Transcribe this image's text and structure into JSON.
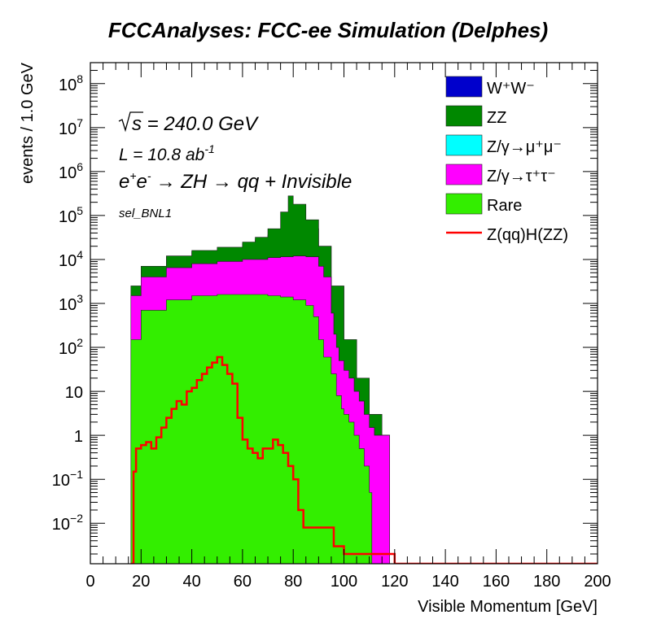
{
  "chart_data": {
    "type": "area",
    "title": "FCCAnalyses: FCC-ee Simulation (Delphes)",
    "xlabel": "Visible Momentum [GeV]",
    "ylabel": "events / 1.0 GeV",
    "xlim": [
      0,
      200
    ],
    "ylim": [
      0.0012,
      300000000
    ],
    "yscale": "log",
    "grid": false,
    "legend_position": "top-right",
    "x_ticks": [
      0,
      20,
      40,
      60,
      80,
      100,
      120,
      140,
      160,
      180,
      200
    ],
    "y_ticks": [
      {
        "value": 0.01,
        "base": "10",
        "exp": "−2"
      },
      {
        "value": 0.1,
        "base": "10",
        "exp": "−1"
      },
      {
        "value": 1,
        "base": "1",
        "exp": ""
      },
      {
        "value": 10,
        "base": "10",
        "exp": ""
      },
      {
        "value": 100,
        "base": "10",
        "exp": "2"
      },
      {
        "value": 1000,
        "base": "10",
        "exp": "3"
      },
      {
        "value": 10000,
        "base": "10",
        "exp": "4"
      },
      {
        "value": 100000,
        "base": "10",
        "exp": "5"
      },
      {
        "value": 1000000,
        "base": "10",
        "exp": "6"
      },
      {
        "value": 10000000,
        "base": "10",
        "exp": "7"
      },
      {
        "value": 100000000,
        "base": "10",
        "exp": "8"
      }
    ],
    "annotations": {
      "sqrt_s": "s = 240.0 GeV",
      "lumi": "L = 10.8 ab",
      "lumi_exp": "-1",
      "process_ee": "e",
      "process_rest": "→ ZH → qq + Invisible",
      "selection": "sel_BNL1"
    },
    "stacked_series_cumulative": [
      {
        "name": "W+W-",
        "legend": "W⁺W⁻",
        "color": "#0000cc",
        "x": [
          16,
          20,
          30,
          40,
          50,
          60,
          65,
          70,
          75,
          80,
          85,
          90,
          95,
          100,
          105,
          110,
          115,
          117
        ],
        "values": [
          2500,
          7000,
          12000,
          15000,
          18000,
          23000,
          28000,
          36000,
          48000,
          70000,
          50000,
          20000,
          2500,
          150,
          20,
          3,
          1,
          1
        ]
      },
      {
        "name": "ZZ",
        "legend": "ZZ",
        "color": "#008800",
        "x": [
          16,
          20,
          30,
          40,
          50,
          60,
          65,
          70,
          75,
          78,
          80,
          85,
          90,
          95,
          100,
          105,
          110,
          115,
          117
        ],
        "values": [
          2500,
          7000,
          12000,
          16000,
          19000,
          25000,
          32000,
          50000,
          120000,
          280000,
          180000,
          80000,
          20000,
          2500,
          150,
          20,
          3,
          1,
          1
        ]
      },
      {
        "name": "Z/gamma->mumu",
        "legend": "Z/γ→μ⁺μ⁻",
        "color": "#00ffff",
        "x": [
          16,
          20,
          30,
          40,
          50,
          60,
          70,
          75,
          80,
          85,
          90,
          92,
          95,
          96,
          97,
          98,
          100,
          102,
          104,
          106,
          108,
          110,
          112,
          115,
          117
        ],
        "values": [
          1500,
          4000,
          6500,
          8000,
          9000,
          10000,
          11000,
          11500,
          12000,
          11500,
          7000,
          4000,
          600,
          200,
          100,
          50,
          30,
          20,
          10,
          6,
          3,
          1.5,
          1,
          1,
          1
        ]
      },
      {
        "name": "Z/gamma->tautau",
        "legend": "Z/γ→τ⁺τ⁻",
        "color": "#ff00ff",
        "x": [
          16,
          20,
          30,
          40,
          50,
          60,
          70,
          75,
          80,
          85,
          90,
          92,
          95,
          96,
          97,
          98,
          100,
          102,
          104,
          106,
          108,
          110,
          112,
          115,
          117
        ],
        "values": [
          1500,
          4000,
          6500,
          8000,
          9000,
          10000,
          11000,
          11500,
          12000,
          11500,
          7000,
          4000,
          600,
          200,
          100,
          50,
          30,
          20,
          10,
          6,
          3,
          1.5,
          1,
          1,
          1
        ]
      },
      {
        "name": "Rare",
        "legend": "Rare",
        "color": "#33ee00",
        "x": [
          16,
          20,
          30,
          40,
          50,
          60,
          70,
          75,
          80,
          85,
          88,
          90,
          92,
          95,
          97,
          99,
          100,
          102,
          104,
          106,
          108,
          110
        ],
        "values": [
          150,
          700,
          1200,
          1500,
          1600,
          1600,
          1500,
          1400,
          1200,
          900,
          500,
          150,
          60,
          25,
          8,
          4,
          3,
          2,
          1,
          0.5,
          0.2,
          0.05
        ]
      }
    ],
    "signal": {
      "name": "Z(qq)H(ZZ)",
      "legend": "Z(qq)H(ZZ)",
      "color": "#ff0000",
      "x": [
        16,
        17,
        18,
        20,
        22,
        24,
        26,
        28,
        30,
        32,
        34,
        36,
        38,
        40,
        42,
        44,
        46,
        48,
        50,
        52,
        54,
        56,
        58,
        60,
        62,
        64,
        66,
        68,
        70,
        72,
        74,
        76,
        78,
        80,
        82,
        84,
        86,
        88,
        90,
        92,
        94,
        95,
        96,
        98,
        100,
        102,
        104,
        106,
        120,
        200
      ],
      "values": [
        0.001,
        0.15,
        0.5,
        0.6,
        0.7,
        0.5,
        0.9,
        1.5,
        2.5,
        4,
        6,
        5,
        10,
        12,
        18,
        25,
        35,
        45,
        60,
        40,
        25,
        15,
        2.5,
        0.8,
        0.5,
        0.4,
        0.3,
        0.5,
        0.5,
        0.8,
        0.6,
        0.4,
        0.2,
        0.1,
        0.02,
        0.008,
        0.008,
        0.008,
        0.008,
        0.008,
        0.008,
        0.008,
        0.003,
        0.003,
        0.002,
        0.002,
        0.002,
        0.002,
        0.001,
        0.001
      ]
    }
  }
}
